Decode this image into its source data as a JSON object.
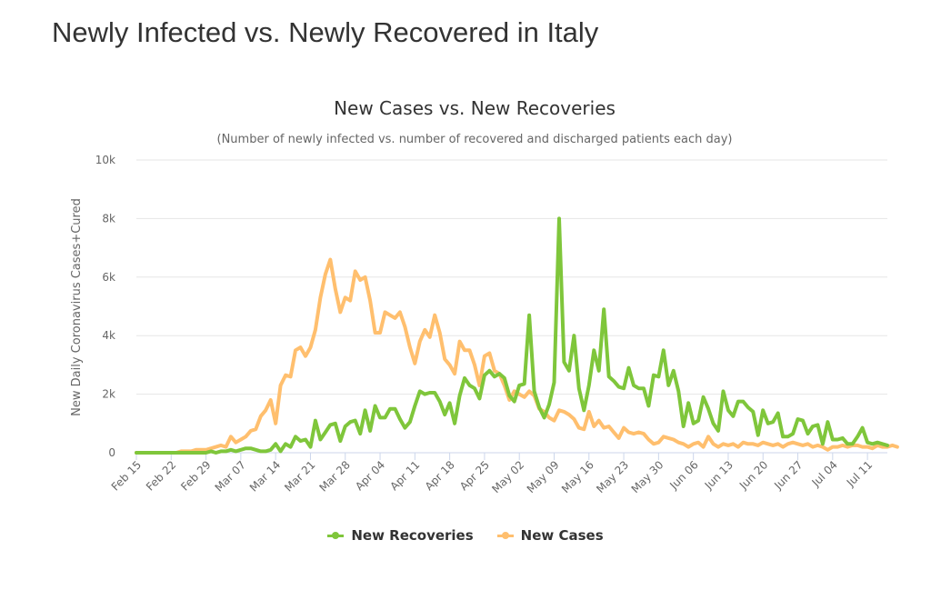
{
  "page": {
    "title": "Newly Infected vs. Newly Recovered in Italy"
  },
  "chart_data": {
    "type": "line",
    "title": "New Cases vs. New Recoveries",
    "subtitle": "(Number of newly infected vs. number of recovered and discharged patients each day)",
    "ylabel": "New Daily Coronavirus Cases+Cured",
    "xlabel": "",
    "ylim": [
      0,
      10000
    ],
    "yticks": [
      "0",
      "2k",
      "4k",
      "6k",
      "8k",
      "10k"
    ],
    "grid": true,
    "legend_position": "bottom-center",
    "x_start": "Feb 15",
    "x_end": "Jul 13",
    "x_ticks": [
      "Feb 15",
      "Feb 22",
      "Feb 29",
      "Mar 07",
      "Mar 14",
      "Mar 21",
      "Mar 28",
      "Apr 04",
      "Apr 11",
      "Apr 18",
      "Apr 25",
      "May 02",
      "May 09",
      "May 16",
      "May 23",
      "May 30",
      "Jun 06",
      "Jun 13",
      "Jun 20",
      "Jun 27",
      "Jul 04",
      "Jul 11"
    ],
    "series": [
      {
        "name": "New Recoveries",
        "color": "#7fc63b",
        "values": [
          0,
          0,
          0,
          0,
          0,
          0,
          0,
          0,
          0,
          0,
          0,
          0,
          0,
          0,
          0,
          50,
          0,
          50,
          50,
          100,
          50,
          100,
          150,
          150,
          100,
          50,
          50,
          100,
          300,
          50,
          300,
          200,
          550,
          400,
          450,
          200,
          1100,
          450,
          700,
          950,
          1000,
          400,
          900,
          1050,
          1100,
          650,
          1450,
          750,
          1600,
          1200,
          1200,
          1500,
          1500,
          1150,
          850,
          1050,
          1600,
          2100,
          2000,
          2050,
          2050,
          1750,
          1300,
          1700,
          1000,
          1950,
          2550,
          2300,
          2200,
          1850,
          2650,
          2800,
          2600,
          2700,
          2550,
          1950,
          1750,
          2300,
          2350,
          4700,
          2100,
          1550,
          1200,
          1650,
          2400,
          8000,
          3100,
          2800,
          4000,
          2200,
          1450,
          2300,
          3500,
          2800,
          4900,
          2600,
          2450,
          2250,
          2200,
          2900,
          2300,
          2200,
          2200,
          1600,
          2650,
          2600,
          3500,
          2300,
          2800,
          2100,
          900,
          1700,
          1000,
          1100,
          1900,
          1500,
          1000,
          750,
          2100,
          1450,
          1250,
          1750,
          1750,
          1550,
          1400,
          600,
          1450,
          1000,
          1050,
          1350,
          550,
          550,
          650,
          1150,
          1100,
          650,
          900,
          950,
          300,
          1050,
          450,
          450,
          500,
          300,
          300,
          550,
          850,
          350,
          300,
          350,
          300,
          250
        ]
      },
      {
        "name": "New Cases",
        "color": "#ffbf6e",
        "values": [
          0,
          0,
          0,
          0,
          0,
          0,
          0,
          0,
          0,
          50,
          50,
          50,
          100,
          100,
          100,
          150,
          200,
          250,
          200,
          550,
          350,
          450,
          550,
          750,
          800,
          1250,
          1450,
          1800,
          1000,
          2300,
          2650,
          2600,
          3500,
          3600,
          3300,
          3600,
          4200,
          5300,
          6100,
          6600,
          5600,
          4800,
          5300,
          5200,
          6200,
          5900,
          6000,
          5200,
          4100,
          4100,
          4800,
          4700,
          4600,
          4800,
          4300,
          3600,
          3050,
          3800,
          4200,
          3950,
          4700,
          4100,
          3200,
          3000,
          2700,
          3800,
          3500,
          3500,
          3000,
          2300,
          3300,
          3400,
          2800,
          2700,
          2300,
          1800,
          2100,
          2000,
          1900,
          2100,
          1950,
          1500,
          1400,
          1200,
          1100,
          1450,
          1400,
          1300,
          1150,
          850,
          800,
          1400,
          900,
          1100,
          850,
          900,
          700,
          500,
          850,
          700,
          650,
          700,
          650,
          450,
          300,
          350,
          550,
          500,
          450,
          350,
          300,
          200,
          300,
          350,
          200,
          550,
          300,
          200,
          300,
          250,
          300,
          200,
          350,
          300,
          300,
          250,
          350,
          300,
          250,
          300,
          200,
          300,
          350,
          300,
          250,
          300,
          200,
          250,
          200,
          100,
          200,
          200,
          250,
          200,
          250,
          250,
          200,
          200,
          150,
          250,
          200,
          200,
          250,
          200
        ]
      }
    ]
  }
}
